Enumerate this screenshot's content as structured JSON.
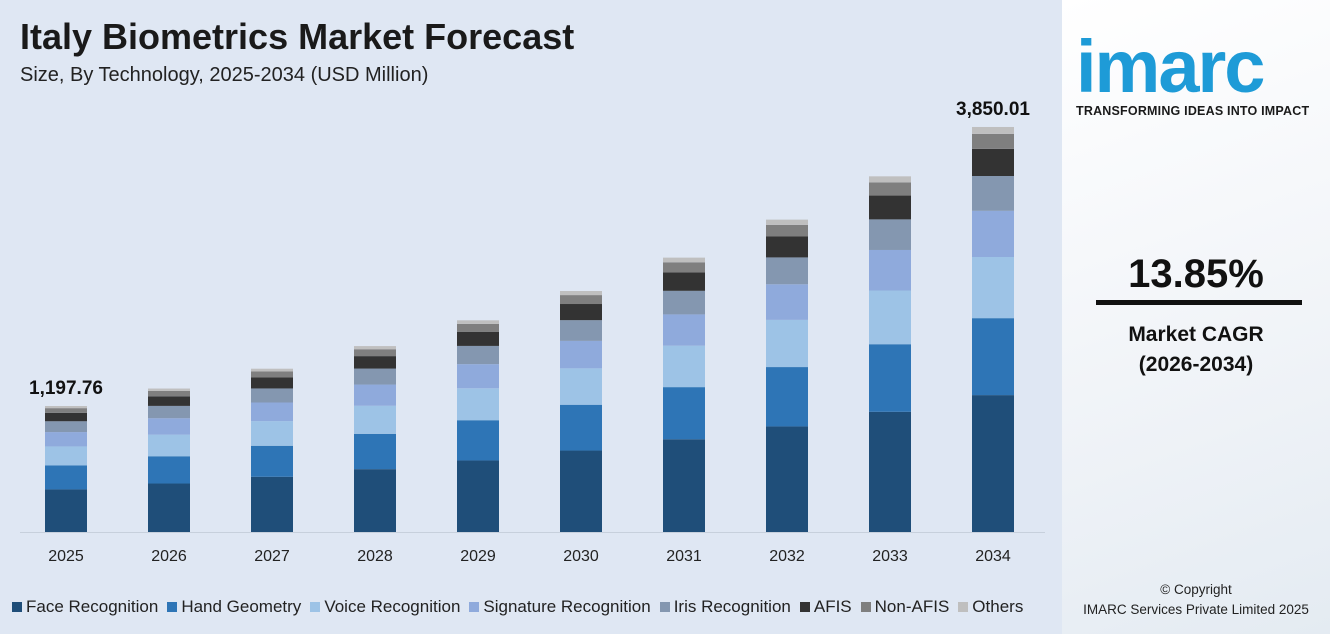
{
  "header": {
    "title": "Italy Biometrics Market Forecast",
    "subtitle": "Size, By Technology, 2025-2034 (USD Million)"
  },
  "chart_data": {
    "type": "bar",
    "stacked": true,
    "title": "Italy Biometrics Market Forecast",
    "subtitle": "Size, By Technology, 2025-2034 (USD Million)",
    "categories": [
      "2025",
      "2026",
      "2027",
      "2028",
      "2029",
      "2030",
      "2031",
      "2032",
      "2033",
      "2034"
    ],
    "series": [
      {
        "name": "Face Recognition",
        "color": "#1f4e79",
        "values": [
          404.8,
          460.9,
          524.7,
          597.4,
          680.2,
          774.4,
          881.6,
          1003.7,
          1142.7,
          1301.3
        ]
      },
      {
        "name": "Hand Geometry",
        "color": "#2e75b6",
        "values": [
          227.6,
          259.1,
          295.0,
          335.8,
          382.3,
          435.3,
          495.6,
          564.2,
          642.4,
          731.5
        ]
      },
      {
        "name": "Voice Recognition",
        "color": "#9dc3e6",
        "values": [
          180.9,
          205.9,
          234.4,
          266.9,
          303.9,
          345.9,
          393.9,
          448.4,
          510.5,
          581.4
        ]
      },
      {
        "name": "Signature Recognition",
        "color": "#8faadc",
        "values": [
          136.5,
          155.5,
          177.0,
          201.5,
          229.4,
          261.2,
          297.3,
          338.5,
          385.4,
          438.9
        ]
      },
      {
        "name": "Iris Recognition",
        "color": "#8497b0",
        "values": [
          103.0,
          117.3,
          133.5,
          152.0,
          173.1,
          197.0,
          224.3,
          255.4,
          290.8,
          331.1
        ]
      },
      {
        "name": "AFIS",
        "color": "#333333",
        "values": [
          80.3,
          91.4,
          104.0,
          118.4,
          134.8,
          153.5,
          174.8,
          199.0,
          226.5,
          258.0
        ]
      },
      {
        "name": "Non-AFIS",
        "color": "#7f7f7f",
        "values": [
          44.3,
          50.5,
          57.4,
          65.4,
          74.5,
          84.8,
          96.5,
          109.9,
          125.1,
          142.5
        ]
      },
      {
        "name": "Others",
        "color": "#bfbfbf",
        "values": [
          20.4,
          23.2,
          26.4,
          30.0,
          34.2,
          38.9,
          44.3,
          50.5,
          57.5,
          65.5
        ]
      }
    ],
    "data_labels": [
      {
        "category": "2025",
        "text": "1,197.76"
      },
      {
        "category": "2034",
        "text": "3,850.01"
      }
    ],
    "ylim": [
      0,
      3850.01
    ],
    "grid": false,
    "legend": "bottom"
  },
  "sidebar": {
    "logo_text": "imarc",
    "tagline": "TRANSFORMING IDEAS INTO IMPACT",
    "cagr_value": "13.85%",
    "cagr_label": "Market CAGR",
    "cagr_period": "(2026-2034)",
    "copyright": "© Copyright",
    "company": "IMARC Services Private Limited 2025"
  }
}
